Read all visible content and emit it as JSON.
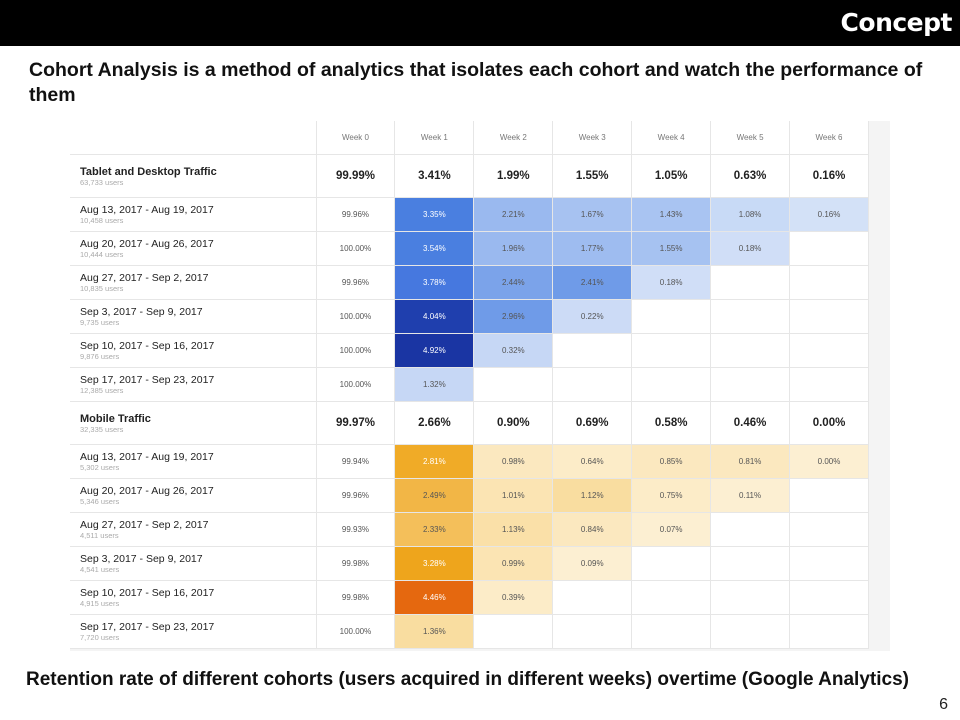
{
  "header": {
    "title": "Concept"
  },
  "intro": "Cohort Analysis is a method of analytics that isolates each cohort and watch the performance of them",
  "table": {
    "columns": [
      "Week 0",
      "Week 1",
      "Week 2",
      "Week 3",
      "Week 4",
      "Week 5",
      "Week 6"
    ],
    "groups": [
      {
        "name": "Tablet and Desktop Traffic",
        "users": "63,733 users",
        "summary": [
          "99.99%",
          "3.41%",
          "1.99%",
          "1.55%",
          "1.05%",
          "0.63%",
          "0.16%"
        ],
        "rows": [
          {
            "name": "Aug 13, 2017 - Aug 19, 2017",
            "users": "10,458 users",
            "values": [
              "99.96%",
              "3.35%",
              "2.21%",
              "1.67%",
              "1.43%",
              "1.08%",
              "0.16%"
            ],
            "colors": [
              "#ffffff",
              "#4a7fe0",
              "#9ab9ef",
              "#a7c2f1",
              "#a9c4f2",
              "#c8daf6",
              "#d3e1f7"
            ]
          },
          {
            "name": "Aug 20, 2017 - Aug 26, 2017",
            "users": "10,444 users",
            "values": [
              "100.00%",
              "3.54%",
              "1.96%",
              "1.77%",
              "1.55%",
              "0.18%",
              ""
            ],
            "colors": [
              "#ffffff",
              "#4a7fe0",
              "#9ab9ef",
              "#9ebcf0",
              "#a6c2f1",
              "#d0def7",
              "#ffffff"
            ]
          },
          {
            "name": "Aug 27, 2017 - Sep 2, 2017",
            "users": "10,835 users",
            "values": [
              "99.96%",
              "3.78%",
              "2.44%",
              "2.41%",
              "0.18%",
              "",
              ""
            ],
            "colors": [
              "#ffffff",
              "#4678df",
              "#7ba3ea",
              "#6f9be8",
              "#d0def7",
              "#ffffff",
              "#ffffff"
            ]
          },
          {
            "name": "Sep 3, 2017 - Sep 9, 2017",
            "users": "9,735 users",
            "values": [
              "100.00%",
              "4.04%",
              "2.96%",
              "0.22%",
              "",
              "",
              ""
            ],
            "colors": [
              "#ffffff",
              "#1f3fae",
              "#6f9be8",
              "#ccdbf6",
              "#ffffff",
              "#ffffff",
              "#ffffff"
            ]
          },
          {
            "name": "Sep 10, 2017 - Sep 16, 2017",
            "users": "9,876 users",
            "values": [
              "100.00%",
              "4.92%",
              "0.32%",
              "",
              "",
              "",
              ""
            ],
            "colors": [
              "#ffffff",
              "#1a35a3",
              "#c6d7f5",
              "#ffffff",
              "#ffffff",
              "#ffffff",
              "#ffffff"
            ]
          },
          {
            "name": "Sep 17, 2017 - Sep 23, 2017",
            "users": "12,385 users",
            "values": [
              "100.00%",
              "1.32%",
              "",
              "",
              "",
              "",
              ""
            ],
            "colors": [
              "#ffffff",
              "#c6d7f5",
              "#ffffff",
              "#ffffff",
              "#ffffff",
              "#ffffff",
              "#ffffff"
            ]
          }
        ]
      },
      {
        "name": "Mobile Traffic",
        "users": "32,335 users",
        "summary": [
          "99.97%",
          "2.66%",
          "0.90%",
          "0.69%",
          "0.58%",
          "0.46%",
          "0.00%"
        ],
        "rows": [
          {
            "name": "Aug 13, 2017 - Aug 19, 2017",
            "users": "5,302 users",
            "values": [
              "99.94%",
              "2.81%",
              "0.98%",
              "0.64%",
              "0.85%",
              "0.81%",
              "0.00%"
            ],
            "colors": [
              "#ffffff",
              "#f0ab27",
              "#fbe8bf",
              "#fcecc8",
              "#fbe8bf",
              "#fbe8bf",
              "#fcefd2"
            ]
          },
          {
            "name": "Aug 20, 2017 - Aug 26, 2017",
            "users": "5,346 users",
            "values": [
              "99.96%",
              "2.49%",
              "1.01%",
              "1.12%",
              "0.75%",
              "0.11%",
              ""
            ],
            "colors": [
              "#ffffff",
              "#f2b646",
              "#fbe4b3",
              "#f9dda0",
              "#fcecc8",
              "#fcefd2",
              "#ffffff"
            ]
          },
          {
            "name": "Aug 27, 2017 - Sep 2, 2017",
            "users": "4,511 users",
            "values": [
              "99.93%",
              "2.33%",
              "1.13%",
              "0.84%",
              "0.07%",
              "",
              ""
            ],
            "colors": [
              "#ffffff",
              "#f4bf5a",
              "#fae0a8",
              "#fbe8bf",
              "#fcefd2",
              "#ffffff",
              "#ffffff"
            ]
          },
          {
            "name": "Sep 3, 2017 - Sep 9, 2017",
            "users": "4,541 users",
            "values": [
              "99.98%",
              "3.28%",
              "0.99%",
              "0.09%",
              "",
              "",
              ""
            ],
            "colors": [
              "#ffffff",
              "#eea51c",
              "#fbe4b3",
              "#fcefd2",
              "#ffffff",
              "#ffffff",
              "#ffffff"
            ]
          },
          {
            "name": "Sep 10, 2017 - Sep 16, 2017",
            "users": "4,915 users",
            "values": [
              "99.98%",
              "4.46%",
              "0.39%",
              "",
              "",
              "",
              ""
            ],
            "colors": [
              "#ffffff",
              "#e5680f",
              "#fcecc8",
              "#ffffff",
              "#ffffff",
              "#ffffff",
              "#ffffff"
            ]
          },
          {
            "name": "Sep 17, 2017 - Sep 23, 2017",
            "users": "7,720 users",
            "values": [
              "100.00%",
              "1.36%",
              "",
              "",
              "",
              "",
              ""
            ],
            "colors": [
              "#ffffff",
              "#f9dda0",
              "#ffffff",
              "#ffffff",
              "#ffffff",
              "#ffffff",
              "#ffffff"
            ]
          }
        ]
      }
    ]
  },
  "caption": "Retention rate of different cohorts (users acquired in different weeks) overtime (Google Analytics)",
  "page_number": "6"
}
